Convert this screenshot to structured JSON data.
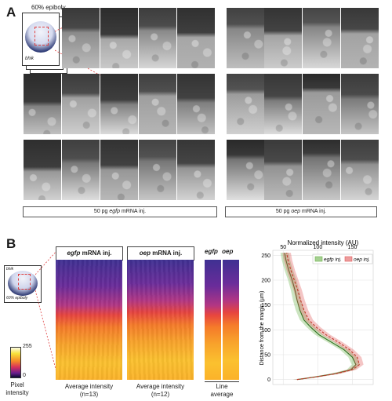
{
  "panel_a": {
    "letter": "A",
    "inset_label_top": "60% epiboly",
    "inset_label_bottom": "bhik",
    "caption_left_pre": "50 pg ",
    "caption_left_gene": "egfp",
    "caption_left_post": " mRNA inj.",
    "caption_right_pre": "50 pg ",
    "caption_right_gene": "oep",
    "caption_right_post": " mRNA inj."
  },
  "panel_b": {
    "letter": "B",
    "inset_label_top": "bhik",
    "inset_label_bottom": "60% epiboly",
    "heatmap1_gene": "egfp",
    "heatmap1_suffix": " mRNA inj.",
    "heatmap2_gene": "oep",
    "heatmap2_suffix": " mRNA inj.",
    "line_gene1": "egfp",
    "line_gene2": "oep",
    "colorbar_max": "255",
    "colorbar_min": "0",
    "colorbar_label1": "Pixel",
    "colorbar_label2": "intensity",
    "label_avg1_a": "Average intensity",
    "label_avg1_b": "(n=13)",
    "label_avg2_a": "Average intensity",
    "label_avg2_b": "(n=12)",
    "label_line_a": "Line",
    "label_line_b": "average"
  },
  "chart_data": {
    "type": "line",
    "title": "",
    "xlabel": "Normalized intensity (AU)",
    "ylabel": "Distance from the margin (µm)",
    "xlim": [
      35,
      180
    ],
    "ylim": [
      -10,
      260
    ],
    "xticks": [
      50,
      100,
      150
    ],
    "yticks": [
      0,
      50,
      100,
      150,
      200,
      250
    ],
    "legend_position": "top-right",
    "grid": true,
    "series": [
      {
        "name": "egfp inj.",
        "color": "#6bb14a",
        "style": "solid",
        "points": [
          [
            70,
            0
          ],
          [
            95,
            5
          ],
          [
            125,
            12
          ],
          [
            148,
            20
          ],
          [
            155,
            30
          ],
          [
            150,
            45
          ],
          [
            138,
            60
          ],
          [
            120,
            75
          ],
          [
            102,
            90
          ],
          [
            90,
            105
          ],
          [
            80,
            120
          ],
          [
            74,
            140
          ],
          [
            70,
            160
          ],
          [
            67,
            180
          ],
          [
            63,
            200
          ],
          [
            58,
            220
          ],
          [
            54,
            240
          ],
          [
            52,
            255
          ]
        ]
      },
      {
        "name": "oep inj.",
        "color": "#e05a5a",
        "style": "dashed",
        "points": [
          [
            70,
            0
          ],
          [
            96,
            5
          ],
          [
            127,
            12
          ],
          [
            150,
            20
          ],
          [
            160,
            30
          ],
          [
            157,
            45
          ],
          [
            146,
            60
          ],
          [
            130,
            75
          ],
          [
            112,
            90
          ],
          [
            98,
            105
          ],
          [
            87,
            120
          ],
          [
            80,
            140
          ],
          [
            75,
            160
          ],
          [
            71,
            180
          ],
          [
            66,
            200
          ],
          [
            61,
            220
          ],
          [
            57,
            240
          ],
          [
            55,
            255
          ]
        ]
      }
    ]
  }
}
